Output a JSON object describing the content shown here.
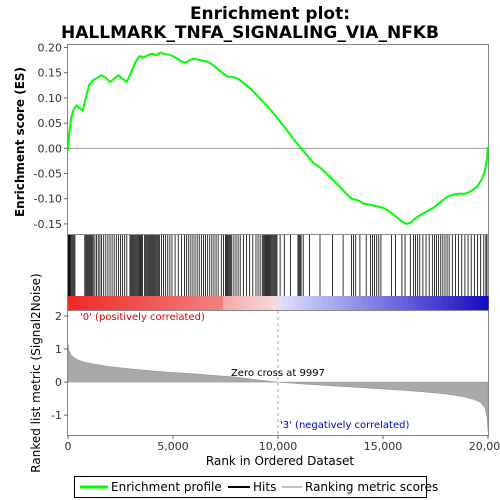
{
  "chart_data": {
    "type": "line",
    "title_line1": "Enrichment plot:",
    "title_line2": "HALLMARK_TNFA_SIGNALING_VIA_NFKB",
    "top_panel": {
      "ylabel": "Enrichment score (ES)",
      "ylim": [
        -0.17,
        0.205
      ],
      "yticks": [
        "0.20",
        "0.15",
        "0.10",
        "0.05",
        "0.00",
        "-0.05",
        "-0.10",
        "-0.15"
      ],
      "ytick_values": [
        0.2,
        0.15,
        0.1,
        0.05,
        0.0,
        -0.05,
        -0.1,
        -0.15
      ],
      "series_color": "#00ff00",
      "es_profile": [
        [
          0,
          -0.005
        ],
        [
          60,
          0.03
        ],
        [
          150,
          0.06
        ],
        [
          250,
          0.075
        ],
        [
          400,
          0.085
        ],
        [
          550,
          0.08
        ],
        [
          700,
          0.075
        ],
        [
          850,
          0.1
        ],
        [
          1000,
          0.125
        ],
        [
          1200,
          0.135
        ],
        [
          1400,
          0.14
        ],
        [
          1600,
          0.145
        ],
        [
          1800,
          0.14
        ],
        [
          2000,
          0.132
        ],
        [
          2200,
          0.138
        ],
        [
          2400,
          0.145
        ],
        [
          2600,
          0.138
        ],
        [
          2800,
          0.132
        ],
        [
          3000,
          0.15
        ],
        [
          3200,
          0.17
        ],
        [
          3400,
          0.183
        ],
        [
          3600,
          0.18
        ],
        [
          3800,
          0.185
        ],
        [
          4000,
          0.188
        ],
        [
          4200,
          0.185
        ],
        [
          4400,
          0.19
        ],
        [
          4600,
          0.187
        ],
        [
          4800,
          0.186
        ],
        [
          5000,
          0.183
        ],
        [
          5200,
          0.178
        ],
        [
          5400,
          0.172
        ],
        [
          5600,
          0.17
        ],
        [
          5800,
          0.175
        ],
        [
          6000,
          0.178
        ],
        [
          6200,
          0.176
        ],
        [
          6400,
          0.174
        ],
        [
          6600,
          0.172
        ],
        [
          6800,
          0.168
        ],
        [
          7000,
          0.162
        ],
        [
          7200,
          0.155
        ],
        [
          7400,
          0.148
        ],
        [
          7600,
          0.142
        ],
        [
          7800,
          0.142
        ],
        [
          8000,
          0.14
        ],
        [
          8200,
          0.135
        ],
        [
          8400,
          0.128
        ],
        [
          8700,
          0.118
        ],
        [
          9000,
          0.105
        ],
        [
          9300,
          0.092
        ],
        [
          9600,
          0.078
        ],
        [
          9900,
          0.064
        ],
        [
          10200,
          0.048
        ],
        [
          10500,
          0.032
        ],
        [
          10800,
          0.015
        ],
        [
          11100,
          0.0
        ],
        [
          11400,
          -0.015
        ],
        [
          11700,
          -0.03
        ],
        [
          12000,
          -0.038
        ],
        [
          12300,
          -0.05
        ],
        [
          12600,
          -0.062
        ],
        [
          12900,
          -0.075
        ],
        [
          13200,
          -0.088
        ],
        [
          13500,
          -0.1
        ],
        [
          13800,
          -0.103
        ],
        [
          14100,
          -0.11
        ],
        [
          14400,
          -0.112
        ],
        [
          14700,
          -0.115
        ],
        [
          15000,
          -0.118
        ],
        [
          15300,
          -0.125
        ],
        [
          15600,
          -0.135
        ],
        [
          15900,
          -0.145
        ],
        [
          16100,
          -0.15
        ],
        [
          16300,
          -0.148
        ],
        [
          16500,
          -0.14
        ],
        [
          16800,
          -0.132
        ],
        [
          17100,
          -0.125
        ],
        [
          17400,
          -0.118
        ],
        [
          17700,
          -0.108
        ],
        [
          18000,
          -0.098
        ],
        [
          18300,
          -0.092
        ],
        [
          18600,
          -0.09
        ],
        [
          18900,
          -0.09
        ],
        [
          19200,
          -0.085
        ],
        [
          19500,
          -0.075
        ],
        [
          19700,
          -0.062
        ],
        [
          19850,
          -0.045
        ],
        [
          19950,
          -0.02
        ],
        [
          20000,
          0.003
        ]
      ]
    },
    "hits_panel": {
      "hit_ranks": [
        20,
        50,
        90,
        130,
        180,
        230,
        280,
        330,
        800,
        850,
        900,
        950,
        1000,
        1050,
        1100,
        1150,
        1200,
        1280,
        1360,
        1440,
        1520,
        1600,
        1700,
        1800,
        1900,
        2000,
        2100,
        2200,
        2300,
        2400,
        2500,
        2600,
        2700,
        2800,
        2950,
        3000,
        3050,
        3100,
        3150,
        3200,
        3250,
        3300,
        3350,
        3400,
        3450,
        3500,
        3550,
        3650,
        3700,
        3750,
        3800,
        3850,
        3900,
        3950,
        4000,
        4050,
        4100,
        4150,
        4200,
        4250,
        4300,
        4350,
        4450,
        4550,
        4650,
        4750,
        4850,
        4950,
        5100,
        5250,
        5400,
        5550,
        5650,
        5750,
        5850,
        5950,
        6050,
        6150,
        6250,
        6350,
        6450,
        6550,
        6650,
        6750,
        6850,
        6950,
        7050,
        7150,
        7300,
        7400,
        7500,
        7550,
        7600,
        7650,
        7700,
        7750,
        7800,
        7900,
        8000,
        8100,
        8200,
        8350,
        8500,
        8650,
        8800,
        8950,
        9050,
        9150,
        9250,
        9300,
        9350,
        9400,
        9450,
        9500,
        9550,
        9600,
        9650,
        9700,
        9750,
        9800,
        9850,
        9900,
        9950,
        10100,
        10300,
        10600,
        10950,
        11000,
        11050,
        11100,
        11200,
        11500,
        12000,
        12600,
        13100,
        13500,
        13600,
        13700,
        13900,
        14200,
        14400,
        14500,
        14600,
        14700,
        14800,
        14900,
        15400,
        15600,
        15900,
        16050,
        16300,
        16450,
        16550,
        16650,
        16750,
        16900,
        17050,
        17200,
        17350,
        17450,
        17550,
        17650,
        17750,
        17850,
        17950,
        18050,
        18150,
        18300,
        18450,
        18600,
        18750,
        18900,
        19050,
        19200,
        19350,
        19500,
        19650,
        19800,
        19900,
        19950
      ]
    },
    "bottom_panel": {
      "ylabel": "Ranked list metric (Signal2Noise)",
      "ylim": [
        -1.6,
        2.15
      ],
      "yticks": [
        "2",
        "1",
        "0",
        "-1"
      ],
      "ytick_values": [
        2,
        1,
        0,
        -1
      ],
      "metric_profile": [
        [
          0,
          1.15
        ],
        [
          50,
          0.95
        ],
        [
          150,
          0.82
        ],
        [
          300,
          0.74
        ],
        [
          500,
          0.66
        ],
        [
          800,
          0.6
        ],
        [
          1200,
          0.55
        ],
        [
          2000,
          0.47
        ],
        [
          3000,
          0.4
        ],
        [
          4000,
          0.34
        ],
        [
          5000,
          0.29
        ],
        [
          6000,
          0.25
        ],
        [
          7000,
          0.2
        ],
        [
          8000,
          0.15
        ],
        [
          9000,
          0.07
        ],
        [
          9997,
          0.0
        ],
        [
          11000,
          -0.05
        ],
        [
          12000,
          -0.09
        ],
        [
          13000,
          -0.13
        ],
        [
          14000,
          -0.17
        ],
        [
          15000,
          -0.21
        ],
        [
          16000,
          -0.25
        ],
        [
          17000,
          -0.3
        ],
        [
          18000,
          -0.36
        ],
        [
          18800,
          -0.44
        ],
        [
          19300,
          -0.52
        ],
        [
          19650,
          -0.62
        ],
        [
          19850,
          -0.78
        ],
        [
          19950,
          -1.05
        ],
        [
          20000,
          -1.48
        ]
      ],
      "zero_cross_label": "Zero cross at 9997",
      "zero_cross_rank": 9997,
      "pos_label": "'0' (positively correlated)",
      "neg_label": "'3' (negatively correlated)"
    },
    "xlabel": "Rank in Ordered Dataset",
    "xlim": [
      0,
      20000
    ],
    "xticks": [
      "0",
      "5,000",
      "10,000",
      "15,000",
      "20,000"
    ],
    "xtick_values": [
      0,
      5000,
      10000,
      15000,
      20000
    ],
    "legend": [
      {
        "label": "Enrichment profile",
        "color": "#00ff00"
      },
      {
        "label": "Hits",
        "color": "#000000"
      },
      {
        "label": "Ranking metric scores",
        "color": "#c0c0c0"
      }
    ]
  }
}
